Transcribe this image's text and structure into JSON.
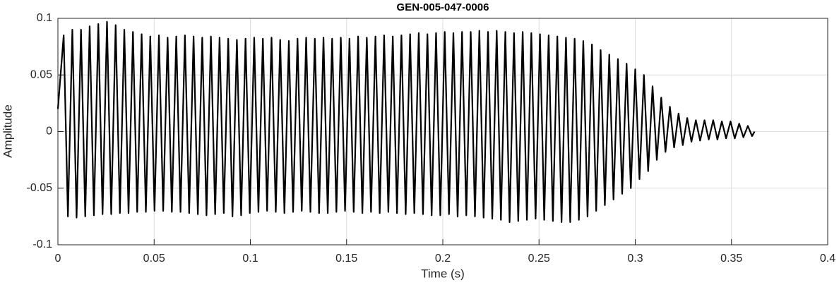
{
  "chart_data": {
    "type": "line",
    "title": "GEN-005-047-0006",
    "xlabel": "Time (s)",
    "ylabel": "Amplitude",
    "color": "#000000",
    "grid": true,
    "xlim": [
      0,
      0.4
    ],
    "ylim": [
      -0.1,
      0.1
    ],
    "xticks": [
      0,
      0.05,
      0.1,
      0.15,
      0.2,
      0.25,
      0.3,
      0.35,
      0.4
    ],
    "yticks": [
      -0.1,
      -0.05,
      0,
      0.05,
      0.1
    ],
    "x": [
      0,
      0.003,
      0.0052,
      0.0075,
      0.0097,
      0.012,
      0.0142,
      0.0165,
      0.0187,
      0.021,
      0.0232,
      0.0255,
      0.0277,
      0.03,
      0.0322,
      0.0345,
      0.0367,
      0.039,
      0.0412,
      0.0435,
      0.0457,
      0.048,
      0.0502,
      0.0525,
      0.0547,
      0.057,
      0.0592,
      0.0615,
      0.0637,
      0.066,
      0.0682,
      0.0705,
      0.0727,
      0.075,
      0.0772,
      0.0795,
      0.0817,
      0.084,
      0.0862,
      0.0885,
      0.0907,
      0.093,
      0.0952,
      0.0975,
      0.0997,
      0.102,
      0.1042,
      0.1065,
      0.1087,
      0.111,
      0.1132,
      0.1155,
      0.1177,
      0.12,
      0.1222,
      0.1245,
      0.1267,
      0.129,
      0.1312,
      0.1335,
      0.1357,
      0.138,
      0.1402,
      0.1425,
      0.1447,
      0.147,
      0.1492,
      0.1515,
      0.1537,
      0.156,
      0.1582,
      0.1605,
      0.1627,
      0.165,
      0.1672,
      0.1695,
      0.1717,
      0.174,
      0.1762,
      0.1785,
      0.1807,
      0.183,
      0.1852,
      0.1875,
      0.1897,
      0.192,
      0.1942,
      0.1965,
      0.1987,
      0.201,
      0.2032,
      0.2055,
      0.2077,
      0.21,
      0.2122,
      0.2145,
      0.2167,
      0.219,
      0.2212,
      0.2235,
      0.2257,
      0.228,
      0.2302,
      0.2325,
      0.2347,
      0.237,
      0.2392,
      0.2415,
      0.2437,
      0.246,
      0.2482,
      0.2505,
      0.2527,
      0.255,
      0.2572,
      0.2595,
      0.2617,
      0.264,
      0.2662,
      0.2685,
      0.2707,
      0.273,
      0.2752,
      0.2775,
      0.2797,
      0.282,
      0.2842,
      0.2865,
      0.2887,
      0.291,
      0.2932,
      0.2955,
      0.2977,
      0.3,
      0.3022,
      0.3045,
      0.3067,
      0.309,
      0.3112,
      0.3135,
      0.3157,
      0.318,
      0.3202,
      0.3225,
      0.3247,
      0.327,
      0.3292,
      0.3315,
      0.3337,
      0.336,
      0.3382,
      0.3405,
      0.3427,
      0.345,
      0.3472,
      0.3495,
      0.3517,
      0.354,
      0.3562,
      0.3585,
      0.3607,
      0.362
    ],
    "values": [
      0.02,
      0.085,
      -0.075,
      0.09,
      -0.076,
      0.09,
      -0.075,
      0.093,
      -0.074,
      0.095,
      -0.073,
      0.097,
      -0.073,
      0.094,
      -0.072,
      0.09,
      -0.072,
      0.088,
      -0.071,
      0.086,
      -0.071,
      0.084,
      -0.07,
      0.085,
      -0.07,
      0.083,
      -0.071,
      0.084,
      -0.071,
      0.085,
      -0.072,
      0.084,
      -0.073,
      0.083,
      -0.074,
      0.084,
      -0.073,
      0.083,
      -0.072,
      0.082,
      -0.075,
      0.081,
      -0.074,
      0.082,
      -0.072,
      0.083,
      -0.071,
      0.082,
      -0.07,
      0.083,
      -0.071,
      0.081,
      -0.072,
      0.08,
      -0.071,
      0.082,
      -0.07,
      0.083,
      -0.071,
      0.082,
      -0.072,
      0.083,
      -0.072,
      0.082,
      -0.071,
      0.083,
      -0.07,
      0.082,
      -0.071,
      0.084,
      -0.072,
      0.083,
      -0.071,
      0.084,
      -0.072,
      0.085,
      -0.071,
      0.084,
      -0.072,
      0.085,
      -0.073,
      0.086,
      -0.072,
      0.087,
      -0.073,
      0.086,
      -0.074,
      0.087,
      -0.074,
      0.088,
      -0.073,
      0.087,
      -0.075,
      0.088,
      -0.074,
      0.088,
      -0.075,
      0.089,
      -0.076,
      0.088,
      -0.077,
      0.089,
      -0.078,
      0.088,
      -0.08,
      0.087,
      -0.079,
      0.088,
      -0.078,
      0.087,
      -0.077,
      0.086,
      -0.078,
      0.085,
      -0.079,
      0.084,
      -0.08,
      0.083,
      -0.08,
      0.082,
      -0.078,
      0.08,
      -0.075,
      0.077,
      -0.07,
      0.072,
      -0.065,
      0.068,
      -0.06,
      0.064,
      -0.055,
      0.06,
      -0.05,
      0.055,
      -0.042,
      0.05,
      -0.035,
      0.04,
      -0.025,
      0.03,
      -0.018,
      0.022,
      -0.014,
      0.016,
      -0.012,
      0.012,
      -0.009,
      0.01,
      -0.008,
      0.01,
      -0.007,
      0.01,
      -0.007,
      0.009,
      -0.006,
      0.009,
      -0.006,
      0.007,
      -0.005,
      0.005,
      -0.004,
      0
    ]
  }
}
